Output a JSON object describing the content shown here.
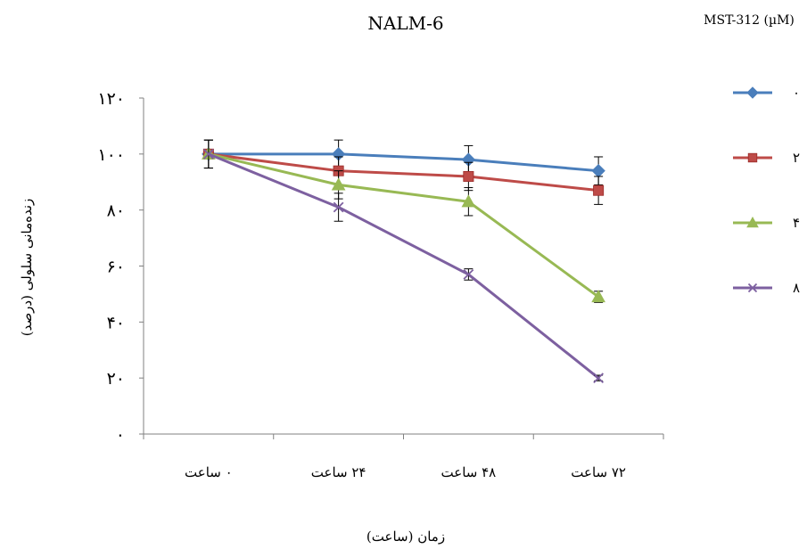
{
  "chart_data": {
    "type": "line",
    "title": "NALM-6",
    "legend_title": "MST-312 (µM)",
    "xlabel": "زمان (ساعت)",
    "ylabel": "زنده‌مانی سلولی (درصد)",
    "categories": [
      "۰ ساعت",
      "۲۴ ساعت",
      "۴۸ ساعت",
      "۷۲ ساعت"
    ],
    "y_ticks": [
      "۰",
      "۲۰",
      "۴۰",
      "۶۰",
      "۸۰",
      "۱۰۰",
      "۱۲۰"
    ],
    "ylim": [
      0,
      120
    ],
    "grid": false,
    "legend_position": "right",
    "series": [
      {
        "name": "۰",
        "color": "#4a7ebb",
        "marker": "diamond",
        "values": [
          100,
          100,
          98,
          94
        ],
        "errors": [
          5,
          5,
          5,
          5
        ]
      },
      {
        "name": "۲",
        "color": "#be4b48",
        "marker": "square",
        "values": [
          100,
          94,
          92,
          87
        ],
        "errors": [
          5,
          5,
          5,
          5
        ]
      },
      {
        "name": "۴",
        "color": "#98b954",
        "marker": "triangle",
        "values": [
          100,
          89,
          83,
          49
        ],
        "errors": [
          5,
          5,
          5,
          2
        ]
      },
      {
        "name": "۸",
        "color": "#7d60a0",
        "marker": "x",
        "values": [
          100,
          81,
          57,
          20
        ],
        "errors": [
          5,
          5,
          2,
          1
        ]
      }
    ]
  }
}
